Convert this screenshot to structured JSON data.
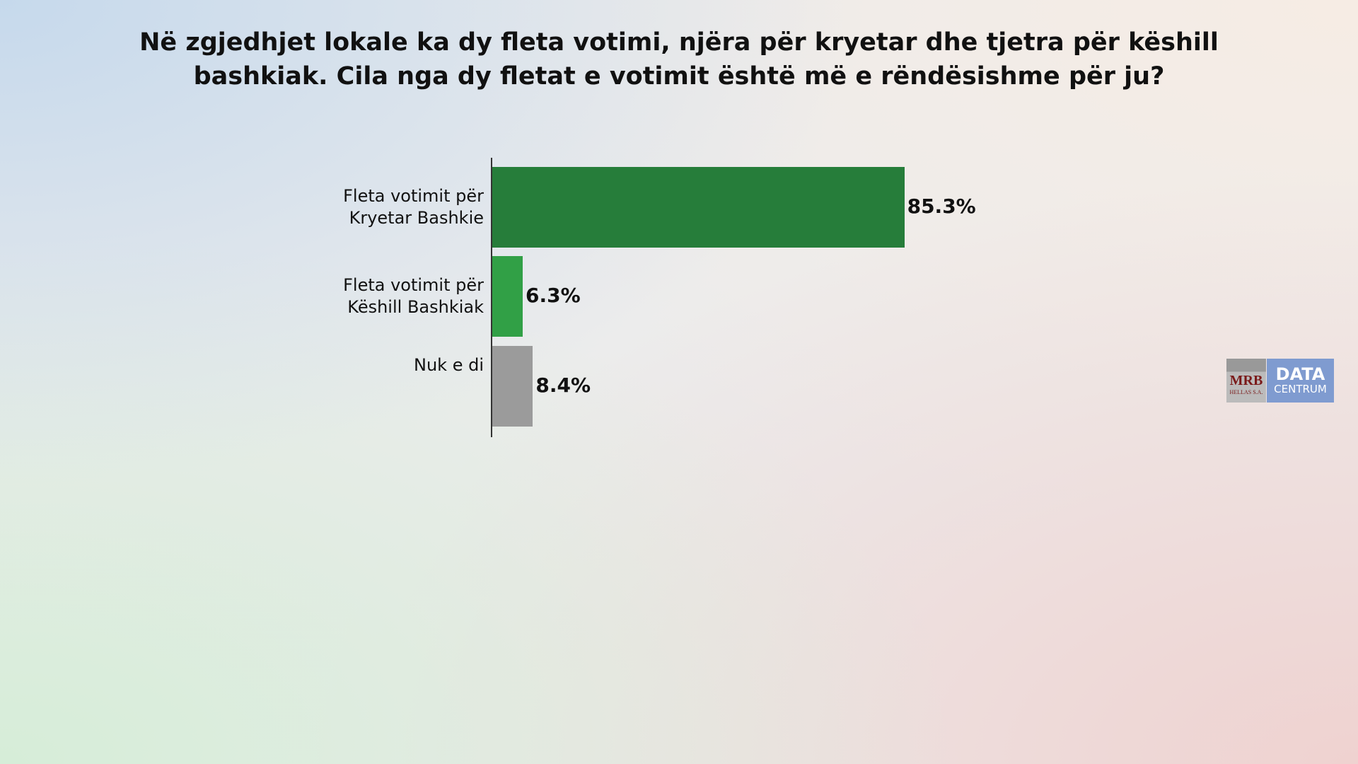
{
  "chart_data": {
    "type": "bar",
    "orientation": "horizontal",
    "title": "Në zgjedhjet lokale ka dy fleta votimi, njëra për kryetar dhe tjetra për këshill\nbashkiak. Cila nga dy fletat e votimit është më e rëndësishme për ju?",
    "categories": [
      "Fleta votimit për\nKryetar Bashkie",
      "Fleta votimit për\nKëshill Bashkiak",
      "Nuk e di"
    ],
    "values": [
      85.3,
      6.3,
      8.4
    ],
    "value_labels": [
      "85.3%",
      "6.3%",
      "8.4%"
    ],
    "colors": [
      "#267d3a",
      "#31a046",
      "#9b9b9b"
    ]
  },
  "logo": {
    "left_top": "MRB",
    "left_bottom": "HELLAS S.A.",
    "right_top": "DATA",
    "right_bottom": "CENTRUM"
  }
}
